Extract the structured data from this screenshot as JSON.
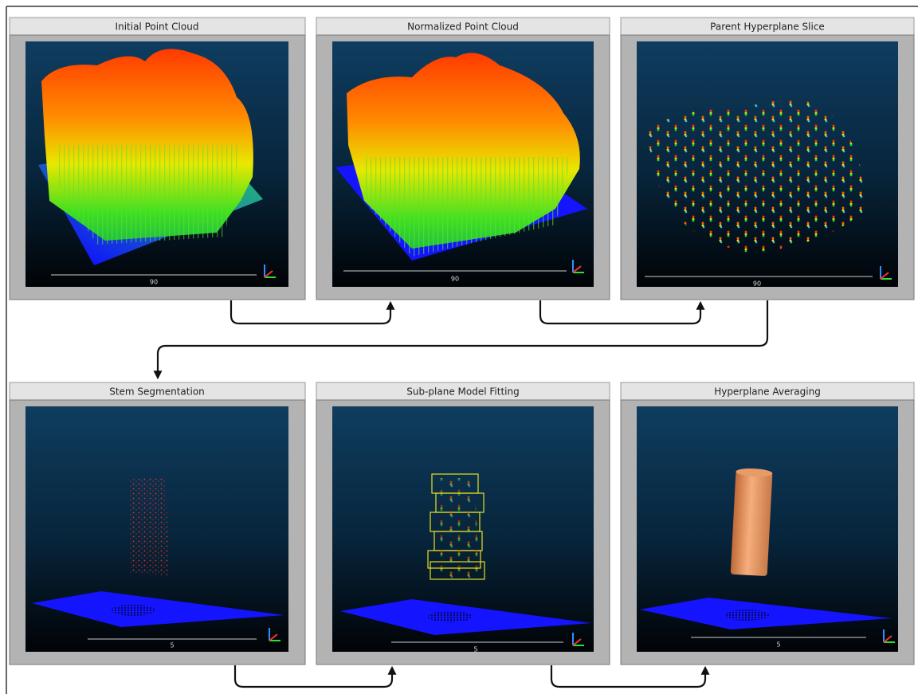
{
  "panels": [
    {
      "title": "Initial Point Cloud",
      "scale": "90"
    },
    {
      "title": "Normalized Point Cloud",
      "scale": "90"
    },
    {
      "title": "Parent Hyperplane Slice",
      "scale": "90"
    },
    {
      "title": "Stem Segmentation",
      "scale": "5"
    },
    {
      "title": "Sub-plane Model Fitting",
      "scale": "5"
    },
    {
      "title": "Hyperplane Averaging",
      "scale": "5"
    }
  ]
}
